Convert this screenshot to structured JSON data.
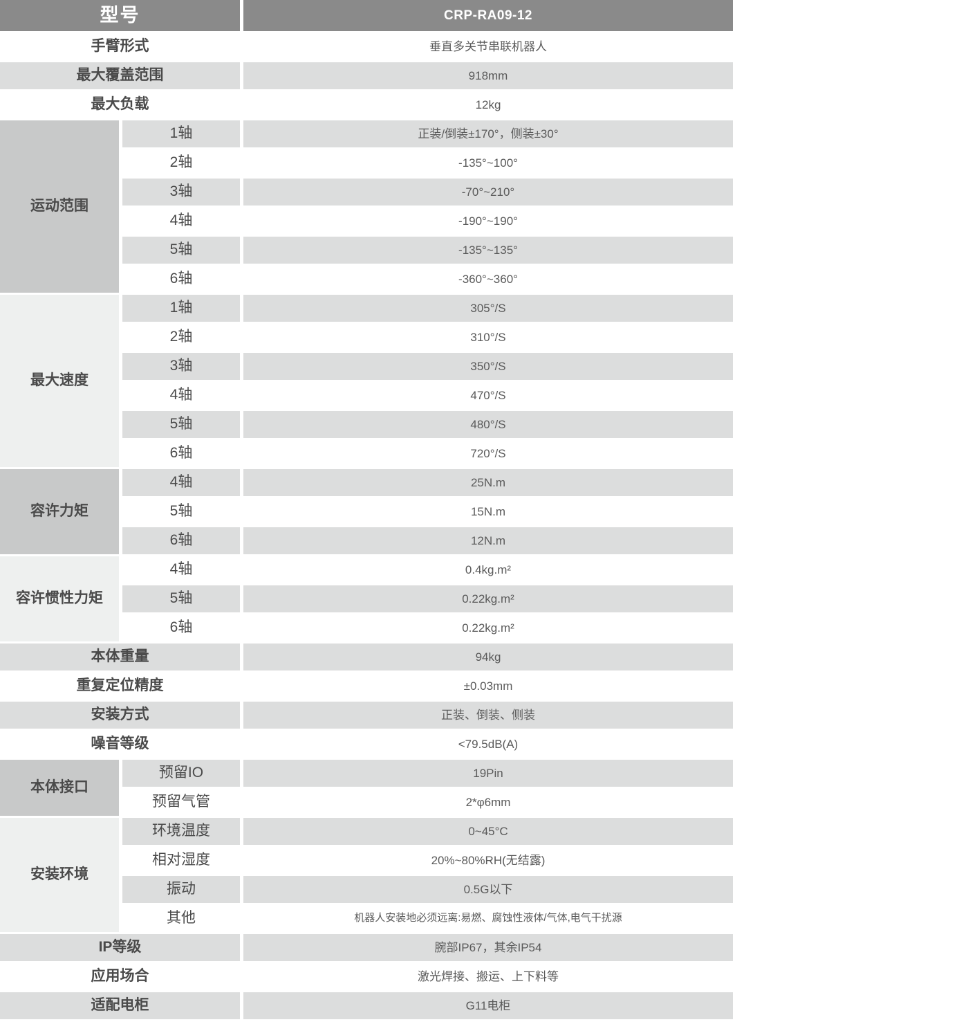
{
  "title": {
    "label": "型号",
    "value": "CRP-RA09-12"
  },
  "top_rows": [
    {
      "label": "手臂形式",
      "value": "垂直多关节串联机器人"
    },
    {
      "label": "最大覆盖范围",
      "value": "918mm"
    },
    {
      "label": "最大负载",
      "value": "12kg"
    }
  ],
  "motion_range": {
    "label": "运动范围",
    "rows": [
      {
        "axis": "1轴",
        "value": "正装/倒装±170°，侧装±30°"
      },
      {
        "axis": "2轴",
        "value": "-135°~100°"
      },
      {
        "axis": "3轴",
        "value": "-70°~210°"
      },
      {
        "axis": "4轴",
        "value": "-190°~190°"
      },
      {
        "axis": "5轴",
        "value": "-135°~135°"
      },
      {
        "axis": "6轴",
        "value": "-360°~360°"
      }
    ]
  },
  "max_speed": {
    "label": "最大速度",
    "rows": [
      {
        "axis": "1轴",
        "value": "305°/S"
      },
      {
        "axis": "2轴",
        "value": "310°/S"
      },
      {
        "axis": "3轴",
        "value": "350°/S"
      },
      {
        "axis": "4轴",
        "value": "470°/S"
      },
      {
        "axis": "5轴",
        "value": "480°/S"
      },
      {
        "axis": "6轴",
        "value": "720°/S"
      }
    ]
  },
  "allowable_torque": {
    "label": "容许力矩",
    "rows": [
      {
        "axis": "4轴",
        "value": "25N.m"
      },
      {
        "axis": "5轴",
        "value": "15N.m"
      },
      {
        "axis": "6轴",
        "value": "12N.m"
      }
    ]
  },
  "allowable_inertia": {
    "label": "容许惯性力矩",
    "rows": [
      {
        "axis": "4轴",
        "value": "0.4kg.m²"
      },
      {
        "axis": "5轴",
        "value": "0.22kg.m²"
      },
      {
        "axis": "6轴",
        "value": "0.22kg.m²"
      }
    ]
  },
  "mid_rows": [
    {
      "label": "本体重量",
      "value": "94kg"
    },
    {
      "label": "重复定位精度",
      "value": "±0.03mm"
    },
    {
      "label": "安装方式",
      "value": "正装、倒装、侧装"
    },
    {
      "label": "噪音等级",
      "value": "<79.5dB(A)"
    }
  ],
  "body_interface": {
    "label": "本体接口",
    "rows": [
      {
        "name": "预留IO",
        "value": "19Pin"
      },
      {
        "name": "预留气管",
        "value": "2*φ6mm"
      }
    ]
  },
  "install_env": {
    "label": "安装环境",
    "rows": [
      {
        "name": "环境温度",
        "value": "0~45°C"
      },
      {
        "name": "相对湿度",
        "value": "20%~80%RH(无结露)"
      },
      {
        "name": "振动",
        "value": "0.5G以下"
      },
      {
        "name": "其他",
        "value": "机器人安装地必须远离:易燃、腐蚀性液体/气体,电气干扰源"
      }
    ]
  },
  "bottom_rows": [
    {
      "label": "IP等级",
      "value": "腕部IP67，其余IP54"
    },
    {
      "label": "应用场合",
      "value": "激光焊接、搬运、上下料等"
    },
    {
      "label": "适配电柜",
      "value": "G11电柜"
    }
  ],
  "colors": {
    "header_bg": "#8a8a8a",
    "header_text": "#ffffff",
    "group_dark_bg": "#c8c9c9",
    "group_light_bg": "#eef0ef",
    "striped_row_bg": "#dcdddd",
    "label_text": "#4a4a4a",
    "value_text": "#5a5a5a"
  }
}
